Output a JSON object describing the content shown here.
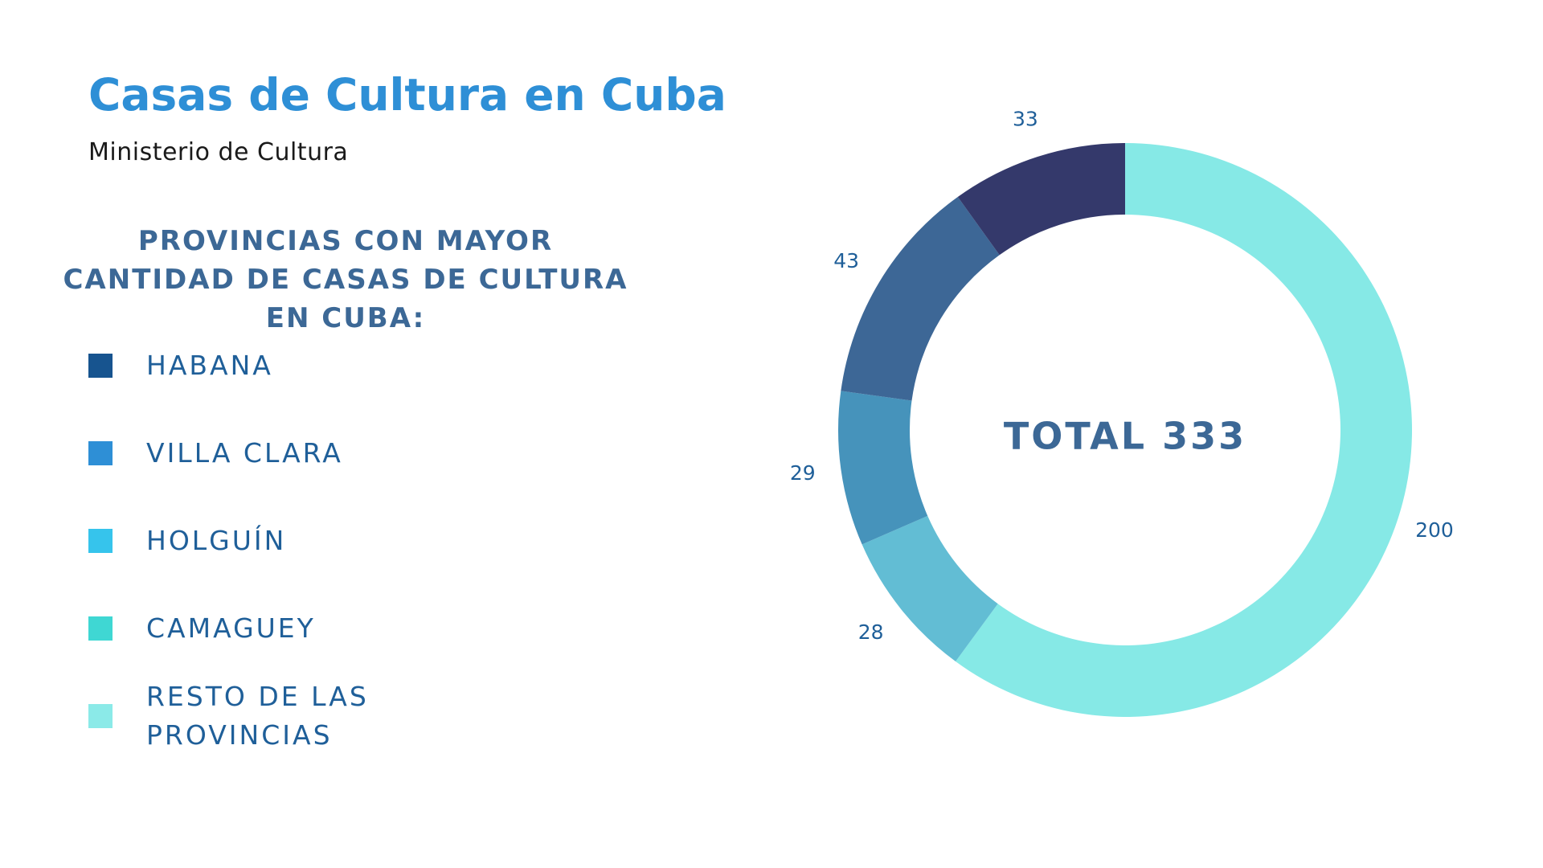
{
  "header": {
    "title": "Casas de Cultura en Cuba",
    "subtitle": "Ministerio de Cultura"
  },
  "chart_data": {
    "type": "pie",
    "variant": "donut",
    "title": "PROVINCIAS CON MAYOR CANTIDAD DE CASAS DE CULTURA EN CUBA:",
    "center_label": "TOTAL 333",
    "legend_position": "left",
    "categories": [
      "HABANA",
      "VILLA CLARA",
      "HOLGUÍN",
      "CAMAGUEY",
      "RESTO DE LAS PROVINCIAS"
    ],
    "values": [
      33,
      43,
      29,
      28,
      200
    ],
    "legend_colors": [
      "#17548f",
      "#2e8fd6",
      "#36c4ec",
      "#3fd7d3",
      "#8beae8"
    ],
    "slice_colors": [
      "#34396b",
      "#3d6796",
      "#4693bb",
      "#62bdd4",
      "#86e9e6"
    ],
    "slice_order_clockwise_from_top": [
      4,
      3,
      2,
      1,
      0
    ]
  }
}
